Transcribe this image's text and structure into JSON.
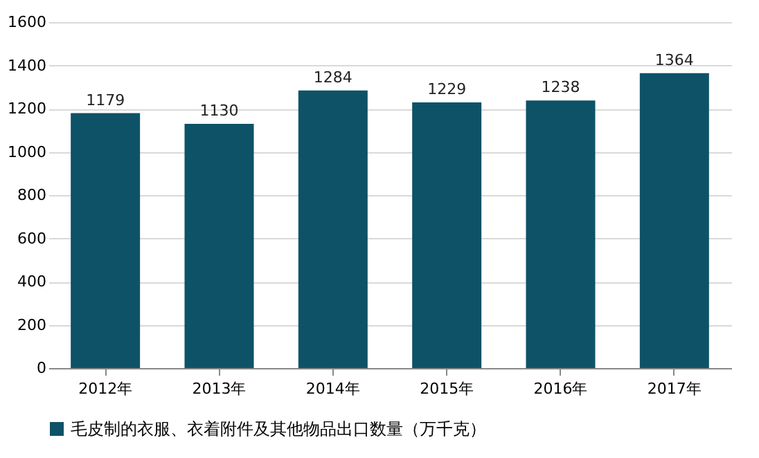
{
  "chart_data": {
    "type": "bar",
    "categories": [
      "2012年",
      "2013年",
      "2014年",
      "2015年",
      "2016年",
      "2017年"
    ],
    "series": [
      {
        "name": "毛皮制的衣服、衣着附件及其他物品出口数量（万千克）",
        "color": "#0e5268",
        "values": [
          1179,
          1130,
          1284,
          1229,
          1238,
          1364
        ]
      }
    ],
    "ylim": [
      0,
      1600
    ],
    "yticks": [
      0,
      200,
      400,
      600,
      800,
      1000,
      1200,
      1400,
      1600
    ],
    "grid": "y",
    "legend": "bottom",
    "data_labels": true
  }
}
